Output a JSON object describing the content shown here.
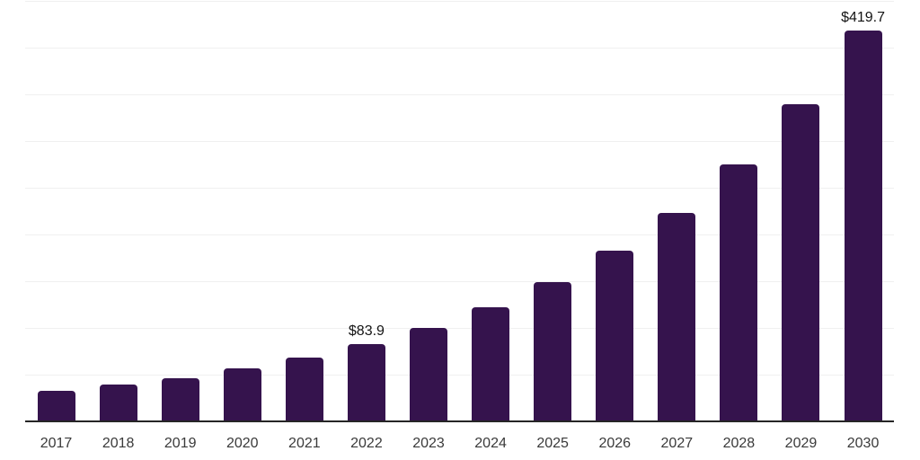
{
  "chart_data": {
    "type": "bar",
    "title": "",
    "xlabel": "",
    "ylabel": "",
    "categories": [
      "2017",
      "2018",
      "2019",
      "2020",
      "2021",
      "2022",
      "2023",
      "2024",
      "2025",
      "2026",
      "2027",
      "2028",
      "2029",
      "2030"
    ],
    "values": [
      33.7,
      40.1,
      47.4,
      57.7,
      69.5,
      83.9,
      101.3,
      123.4,
      150.3,
      183.4,
      224.0,
      275.7,
      340.1,
      419.7
    ],
    "value_labels": [
      {
        "category": "2022",
        "text": "$83.9"
      },
      {
        "category": "2030",
        "text": "$419.7"
      }
    ],
    "ylim": [
      0,
      450
    ],
    "grid_step": 50,
    "grid": true,
    "legend": false,
    "colors": {
      "bar": "#35134d",
      "gridline": "#f0f0f0",
      "axis_line": "#262626",
      "tick_label": "#3a3a3a",
      "value_label": "#141414",
      "background": "#ffffff"
    }
  }
}
